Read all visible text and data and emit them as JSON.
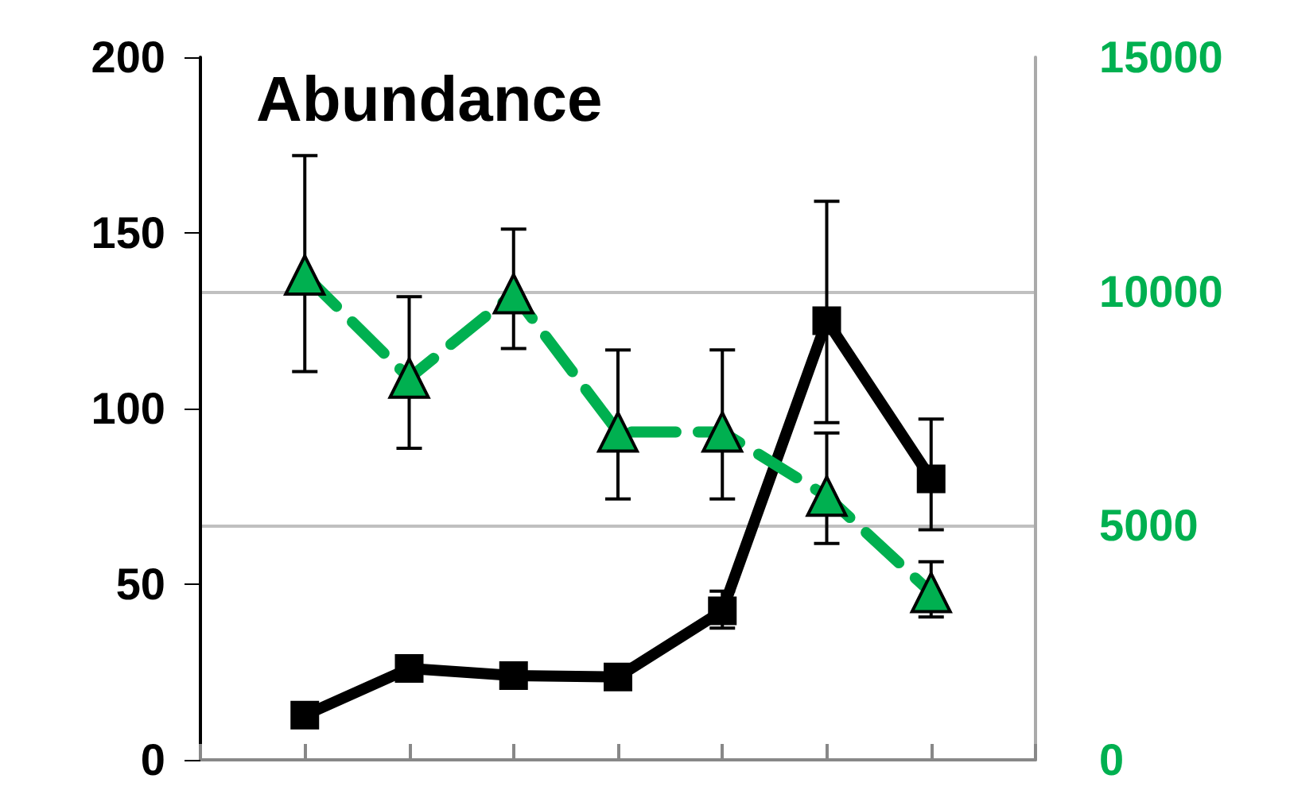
{
  "chart_data": {
    "type": "line",
    "title": "Abundance",
    "categories": [
      null,
      null,
      null,
      null,
      null,
      null,
      null
    ],
    "ylim": [
      0,
      200
    ],
    "yticks": [
      0,
      50,
      100,
      150,
      200
    ],
    "y2lim": [
      0,
      15000
    ],
    "y2ticks": [
      0,
      5000,
      10000,
      15000
    ],
    "grid": "y2",
    "series": [
      {
        "color": "#000000",
        "marker": "square",
        "line_style": "solid",
        "axis": "y",
        "values": [
          12.7,
          26,
          24,
          23.6,
          42.4,
          125,
          80
        ],
        "errors": [
          null,
          null,
          null,
          null,
          [
            37.5,
            48
          ],
          [
            96,
            159
          ],
          [
            65.5,
            97
          ]
        ]
      },
      {
        "color": "#00b050",
        "marker": "triangle",
        "line_style": "dashed",
        "axis": "y2",
        "values": [
          10350,
          8150,
          9950,
          7000,
          7000,
          5630,
          3570
        ],
        "errors": [
          [
            8290,
            12900
          ],
          [
            6650,
            9890
          ],
          [
            8780,
            11330
          ],
          [
            5570,
            8750
          ],
          [
            5570,
            8750
          ],
          [
            4620,
            6980
          ],
          [
            3050,
            4230
          ]
        ]
      }
    ]
  }
}
